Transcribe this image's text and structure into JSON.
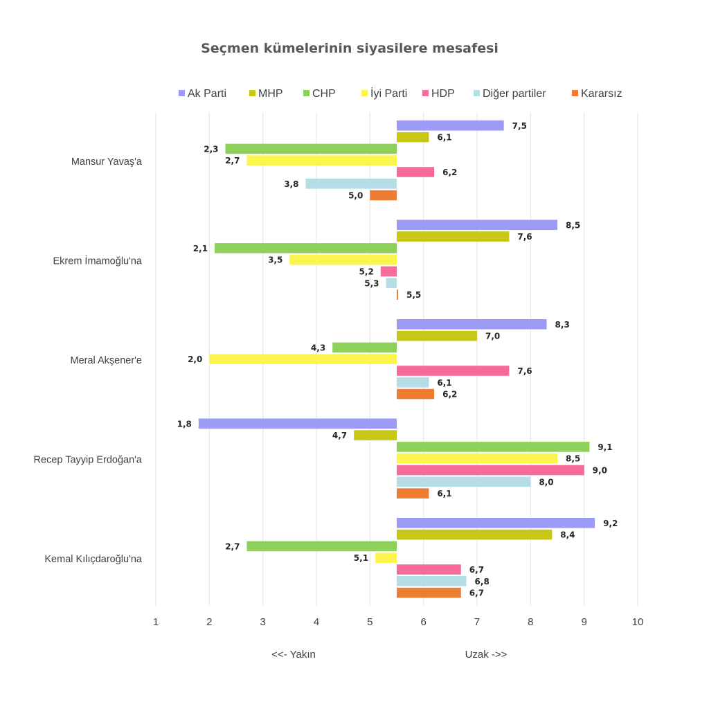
{
  "chart_data": {
    "type": "bar",
    "orientation": "horizontal",
    "title": "Seçmen kümelerinin siyasilere mesafesi",
    "categories": [
      "Mansur Yavaş'a",
      "Ekrem İmamoğlu'na",
      "Meral Akşener'e",
      "Recep Tayyip Erdoğan'a",
      "Kemal Kılıçdaroğlu'na"
    ],
    "baseline": 5.5,
    "xlim": [
      1,
      10
    ],
    "xticks": [
      "1",
      "2",
      "3",
      "4",
      "5",
      "6",
      "7",
      "8",
      "9",
      "10"
    ],
    "direction_labels": {
      "left": "<<- Yakın",
      "right": "Uzak ->>"
    },
    "grid": true,
    "legend_position": "top",
    "series": [
      {
        "name": "Ak Parti",
        "color": "#9b9bf5",
        "values": [
          7.5,
          8.5,
          8.3,
          1.8,
          9.2
        ],
        "labels": [
          "7,5",
          "8,5",
          "8,3",
          "1,8",
          "9,2"
        ]
      },
      {
        "name": "MHP",
        "color": "#c7c716",
        "values": [
          6.1,
          7.6,
          7.0,
          4.7,
          8.4
        ],
        "labels": [
          "6,1",
          "7,6",
          "7,0",
          "4,7",
          "8,4"
        ]
      },
      {
        "name": "CHP",
        "color": "#8ed15a",
        "values": [
          2.3,
          2.1,
          4.3,
          9.1,
          2.7
        ],
        "labels": [
          "2,3",
          "2,1",
          "4,3",
          "9,1",
          "2,7"
        ]
      },
      {
        "name": "İyi Parti",
        "color": "#fbf54d",
        "values": [
          2.7,
          3.5,
          2.0,
          8.5,
          5.1
        ],
        "labels": [
          "2,7",
          "3,5",
          "2,0",
          "8,5",
          "5,1"
        ]
      },
      {
        "name": "HDP",
        "color": "#f56c9c",
        "values": [
          6.2,
          5.2,
          7.6,
          9.0,
          6.7
        ],
        "labels": [
          "6,2",
          "5,2",
          "7,6",
          "9,0",
          "6,7"
        ]
      },
      {
        "name": "Diğer partiler",
        "color": "#b4dde6",
        "values": [
          3.8,
          5.3,
          6.1,
          8.0,
          6.8
        ],
        "labels": [
          "3,8",
          "5,3",
          "6,1",
          "8,0",
          "6,8"
        ]
      },
      {
        "name": "Kararsız",
        "color": "#ed7d31",
        "values": [
          5.0,
          5.5,
          6.2,
          6.1,
          6.7
        ],
        "labels": [
          "5,0",
          "5,5",
          "6,2",
          "6,1",
          "6,7"
        ]
      }
    ]
  }
}
